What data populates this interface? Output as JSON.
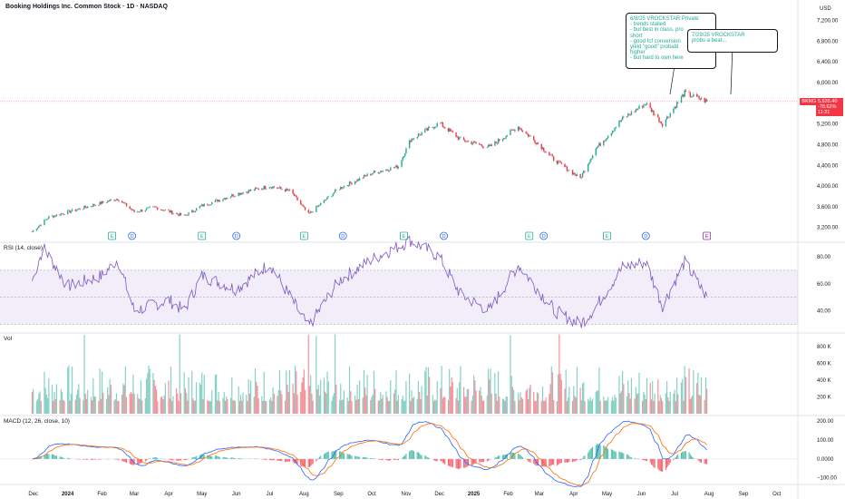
{
  "header": {
    "title": "Booking Holdings Inc. Common Stock · 1D · NASDAQ",
    "currency": "USD"
  },
  "panes": {
    "rsi_label": "RSI (14, close)",
    "vol_label": "Vol",
    "macd_label": "MACD (12, 26, close, 10)"
  },
  "last_price": {
    "symbol": "BKNG",
    "price": "5,635.40",
    "change": "-78.62%",
    "time": "11:21"
  },
  "notes": [
    {
      "text": "6/8/25 VROCKSTAR Private\n- trends stalled\n- but best in class, pro\nshort\n- good fcf conversion\nyield \"good\" probabl\nhigher\n- but hard to own here"
    },
    {
      "text": "7/29/25 VROCKSTAR\nprobs a beat..."
    }
  ],
  "events": [
    "E",
    "D",
    "E",
    "D",
    "E",
    "D",
    "E",
    "D",
    "E",
    "D",
    "E",
    "D",
    "E"
  ],
  "chart_data": [
    {
      "type": "candlestick",
      "name": "price",
      "y_axis_ticks": [
        3200,
        3600,
        4000,
        4400,
        4800,
        5200,
        5600,
        6000,
        6400,
        6800,
        7200
      ],
      "y_tick_labels": [
        "3,200.00",
        "3,600.00",
        "4,000.00",
        "4,400.00",
        "4,800.00",
        "5,200.00",
        "5,600.00",
        "6,000.00",
        "6,400.00",
        "6,800.00",
        "7,200.00"
      ],
      "ylim": [
        2950,
        7350
      ],
      "x_tick_labels": [
        "Dec",
        "2024",
        "Feb",
        "Mar",
        "Apr",
        "May",
        "Jun",
        "Jul",
        "Aug",
        "Sep",
        "Oct",
        "Nov",
        "Dec",
        "2025",
        "Feb",
        "Mar",
        "Apr",
        "May",
        "Jun",
        "Jul",
        "Aug",
        "Sep",
        "Oct"
      ],
      "key_points": [
        {
          "date": "2023-11-30",
          "close": 3120
        },
        {
          "date": "2023-12-15",
          "close": 3400
        },
        {
          "date": "2024-01-10",
          "close": 3550
        },
        {
          "date": "2024-02-15",
          "close": 3760
        },
        {
          "date": "2024-03-01",
          "close": 3500
        },
        {
          "date": "2024-03-20",
          "close": 3590
        },
        {
          "date": "2024-04-15",
          "close": 3420
        },
        {
          "date": "2024-05-01",
          "close": 3620
        },
        {
          "date": "2024-06-01",
          "close": 3850
        },
        {
          "date": "2024-07-01",
          "close": 4000
        },
        {
          "date": "2024-07-20",
          "close": 3900
        },
        {
          "date": "2024-08-05",
          "close": 3450
        },
        {
          "date": "2024-09-01",
          "close": 3950
        },
        {
          "date": "2024-10-01",
          "close": 4250
        },
        {
          "date": "2024-10-25",
          "close": 4380
        },
        {
          "date": "2024-11-05",
          "close": 4900
        },
        {
          "date": "2024-12-01",
          "close": 5220
        },
        {
          "date": "2024-12-20",
          "close": 4900
        },
        {
          "date": "2025-01-15",
          "close": 4750
        },
        {
          "date": "2025-02-10",
          "close": 5150
        },
        {
          "date": "2025-03-01",
          "close": 4800
        },
        {
          "date": "2025-03-15",
          "close": 4500
        },
        {
          "date": "2025-04-07",
          "close": 4150
        },
        {
          "date": "2025-04-20",
          "close": 4700
        },
        {
          "date": "2025-05-15",
          "close": 5300
        },
        {
          "date": "2025-06-05",
          "close": 5600
        },
        {
          "date": "2025-06-20",
          "close": 5200
        },
        {
          "date": "2025-07-10",
          "close": 5800
        },
        {
          "date": "2025-07-30",
          "close": 5635
        }
      ]
    },
    {
      "type": "line",
      "name": "RSI (14, close)",
      "y_axis_ticks": [
        40,
        60,
        80
      ],
      "y_tick_labels": [
        "40.00",
        "60.00",
        "80.00"
      ],
      "band": [
        30,
        70
      ],
      "ylim": [
        25,
        90
      ],
      "key_points": [
        {
          "date": "2023-11-30",
          "value": 62
        },
        {
          "date": "2023-12-10",
          "value": 87
        },
        {
          "date": "2024-01-01",
          "value": 58
        },
        {
          "date": "2024-02-01",
          "value": 66
        },
        {
          "date": "2024-02-15",
          "value": 78
        },
        {
          "date": "2024-03-01",
          "value": 40
        },
        {
          "date": "2024-04-01",
          "value": 48
        },
        {
          "date": "2024-04-15",
          "value": 40
        },
        {
          "date": "2024-05-01",
          "value": 66
        },
        {
          "date": "2024-06-01",
          "value": 56
        },
        {
          "date": "2024-07-01",
          "value": 75
        },
        {
          "date": "2024-08-05",
          "value": 28
        },
        {
          "date": "2024-09-01",
          "value": 62
        },
        {
          "date": "2024-10-01",
          "value": 78
        },
        {
          "date": "2024-11-05",
          "value": 92
        },
        {
          "date": "2024-12-01",
          "value": 80
        },
        {
          "date": "2024-12-20",
          "value": 52
        },
        {
          "date": "2025-01-15",
          "value": 40
        },
        {
          "date": "2025-02-10",
          "value": 74
        },
        {
          "date": "2025-03-15",
          "value": 40
        },
        {
          "date": "2025-04-07",
          "value": 30
        },
        {
          "date": "2025-04-20",
          "value": 42
        },
        {
          "date": "2025-05-15",
          "value": 72
        },
        {
          "date": "2025-06-05",
          "value": 76
        },
        {
          "date": "2025-06-20",
          "value": 44
        },
        {
          "date": "2025-07-10",
          "value": 76
        },
        {
          "date": "2025-07-30",
          "value": 50
        }
      ]
    },
    {
      "type": "bar",
      "name": "Vol",
      "y_axis_ticks": [
        200000,
        400000,
        600000,
        800000
      ],
      "y_tick_labels": [
        "200 K",
        "400 K",
        "600 K",
        "800 K"
      ],
      "ylim": [
        0,
        950000
      ]
    },
    {
      "type": "line",
      "name": "MACD (12, 26, close, 10)",
      "y_axis_ticks": [
        -100,
        0,
        100,
        200
      ],
      "y_tick_labels": [
        "−100.00",
        "0.0000",
        "100.00",
        "200.00"
      ],
      "ylim": [
        -130,
        225
      ]
    }
  ]
}
